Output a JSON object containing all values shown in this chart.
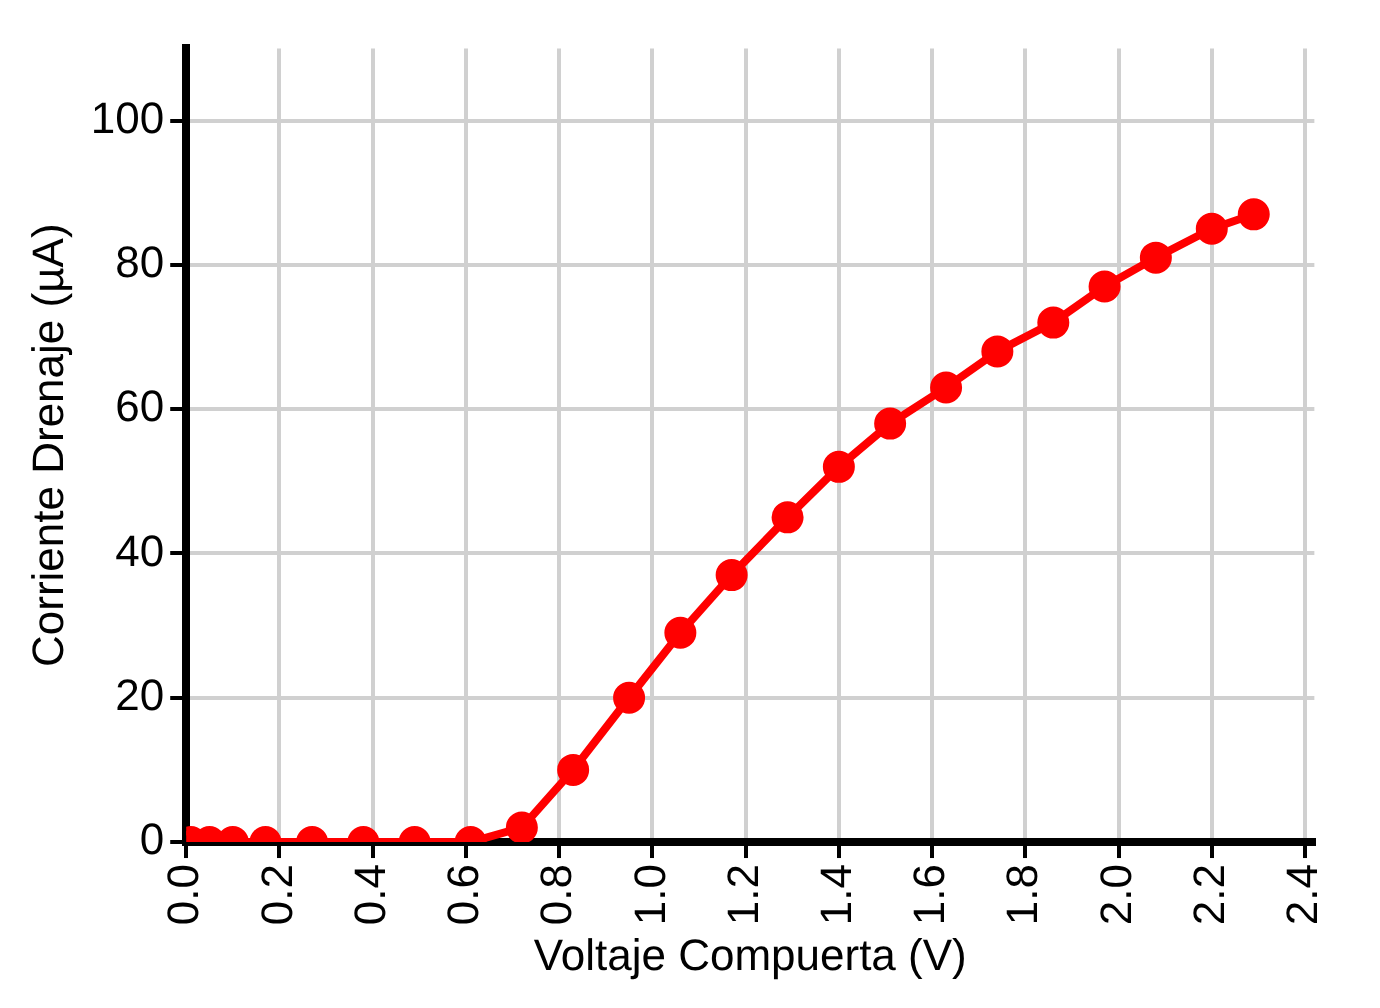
{
  "chart_data": {
    "type": "line",
    "xlabel": "Voltaje Compuerta (V)",
    "ylabel": "Corriente Drenaje (µA)",
    "x": [
      0.01,
      0.05,
      0.1,
      0.17,
      0.27,
      0.38,
      0.49,
      0.61,
      0.72,
      0.83,
      0.95,
      1.06,
      1.17,
      1.29,
      1.4,
      1.51,
      1.63,
      1.74,
      1.86,
      1.97,
      2.08,
      2.2,
      2.29
    ],
    "series": [
      {
        "color": "#ff0000",
        "values": [
          0,
          0,
          0,
          0,
          0,
          0,
          0,
          0,
          2,
          10,
          20,
          29,
          37,
          45,
          52,
          58,
          63,
          68,
          72,
          77,
          81,
          85,
          87
        ]
      }
    ],
    "xlim": [
      0,
      2.42
    ],
    "xticks": [
      {
        "value": 0,
        "label": "0.0"
      },
      0.2,
      0.4,
      0.6,
      0.8,
      {
        "value": 1,
        "label": "1.0"
      },
      1.2,
      1.4,
      1.6,
      1.8,
      {
        "value": 2,
        "label": "2.0"
      },
      2.2,
      2.4
    ],
    "ylim": [
      0,
      110
    ],
    "yticks": [
      0,
      20,
      40,
      60,
      80,
      100
    ],
    "grid": true,
    "legend": false,
    "marker": "circle",
    "line_style": "solid"
  }
}
